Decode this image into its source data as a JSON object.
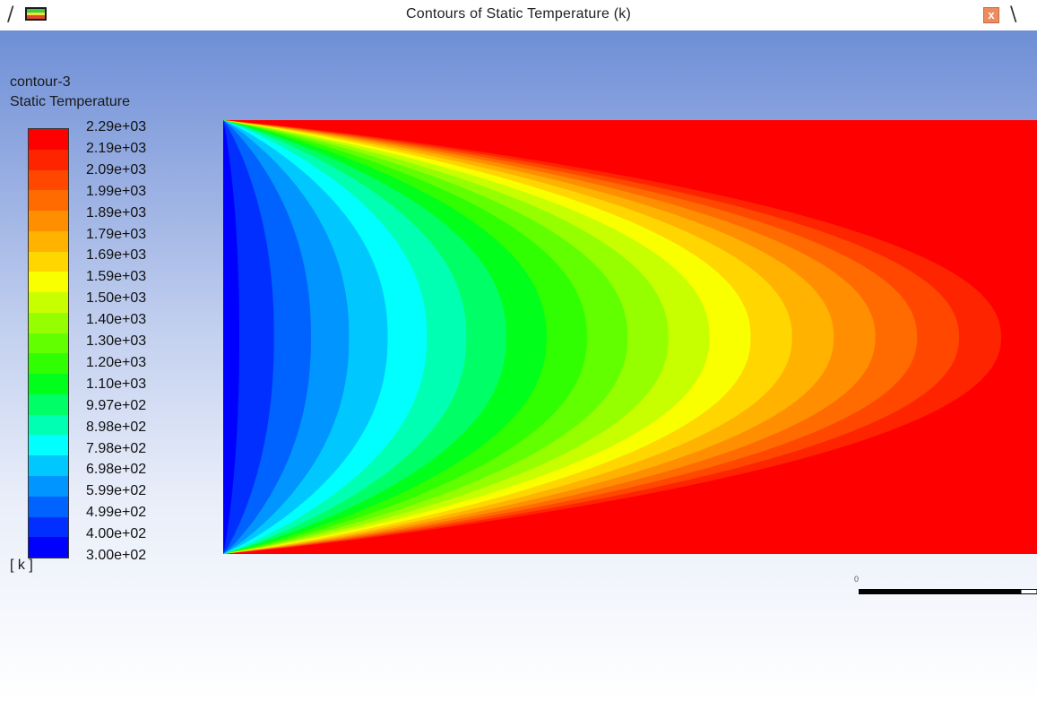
{
  "window": {
    "title": "Contours of Static Temperature (k)",
    "left_glyph": "/",
    "right_glyph": "\\",
    "icon": "contour-plot-icon",
    "close_icon": "close-icon",
    "close_symbol": "x"
  },
  "legend": {
    "name": "contour-3",
    "quantity": "Static Temperature",
    "unit": "[ k ]",
    "labels": [
      "2.29e+03",
      "2.19e+03",
      "2.09e+03",
      "1.99e+03",
      "1.89e+03",
      "1.79e+03",
      "1.69e+03",
      "1.59e+03",
      "1.50e+03",
      "1.40e+03",
      "1.30e+03",
      "1.20e+03",
      "1.10e+03",
      "9.97e+02",
      "8.98e+02",
      "7.98e+02",
      "6.98e+02",
      "5.99e+02",
      "4.99e+02",
      "4.00e+02",
      "3.00e+02"
    ],
    "colors": [
      "#ff0000",
      "#ff2400",
      "#ff4700",
      "#ff6b00",
      "#ff8f00",
      "#ffb200",
      "#ffd600",
      "#faff00",
      "#c8ff00",
      "#95ff00",
      "#62ff00",
      "#2fff00",
      "#00ff1a",
      "#00ff66",
      "#00ffb2",
      "#00fffe",
      "#00c8ff",
      "#0095ff",
      "#0062ff",
      "#002fff",
      "#0000ff"
    ]
  },
  "scale": {
    "zero_label": "0"
  },
  "colors": {
    "background_top": "#6e8fd6",
    "background_bottom": "#ffffff",
    "close_button": "#ef8a5e"
  }
}
